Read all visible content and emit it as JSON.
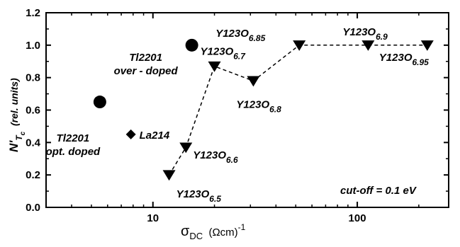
{
  "chart_data": {
    "type": "scatter",
    "x_scale": "log",
    "xlim": [
      3,
      280
    ],
    "ylim": [
      0,
      1.2
    ],
    "yticks": [
      "0.0",
      "0.2",
      "0.4",
      "0.6",
      "0.8",
      "1.0",
      "1.2"
    ],
    "xticks": [
      {
        "value": 10,
        "label": "10"
      },
      {
        "value": 100,
        "label": "100"
      }
    ],
    "xlabel": {
      "main": "σ",
      "sub": "DC",
      "unit": "(Ωcm)",
      "sup": "-1"
    },
    "ylabel": {
      "main": "N'",
      "sub": "T",
      "subsub": "c",
      "unit": "(rel. units)"
    },
    "note": "cut-off = 0.1 eV",
    "series": [
      {
        "marker": "triangle-down",
        "line": "dashed",
        "points": [
          {
            "x": 12,
            "y": 0.2,
            "base": "Y123O",
            "sub": "6.5"
          },
          {
            "x": 14.5,
            "y": 0.37,
            "base": "Y123O",
            "sub": "6.6"
          },
          {
            "x": 20,
            "y": 0.87,
            "base": "Y123O",
            "sub": "6.7"
          },
          {
            "x": 31,
            "y": 0.78,
            "base": "Y123O",
            "sub": "6.8"
          },
          {
            "x": 52,
            "y": 1.0,
            "base": "Y123O",
            "sub": "6.85"
          },
          {
            "x": 113,
            "y": 1.0,
            "base": "Y123O",
            "sub": "6.9"
          },
          {
            "x": 220,
            "y": 1.0,
            "base": "Y123O",
            "sub": "6.95"
          }
        ]
      },
      {
        "marker": "circle",
        "points": [
          {
            "x": 5.5,
            "y": 0.65,
            "label": [
              "Tl2201",
              "opt. doped"
            ]
          },
          {
            "x": 15.5,
            "y": 1.0,
            "label": [
              "Tl2201",
              "over - doped"
            ]
          }
        ]
      },
      {
        "marker": "diamond",
        "points": [
          {
            "x": 7.8,
            "y": 0.45,
            "label": [
              "La214"
            ]
          }
        ]
      }
    ]
  }
}
